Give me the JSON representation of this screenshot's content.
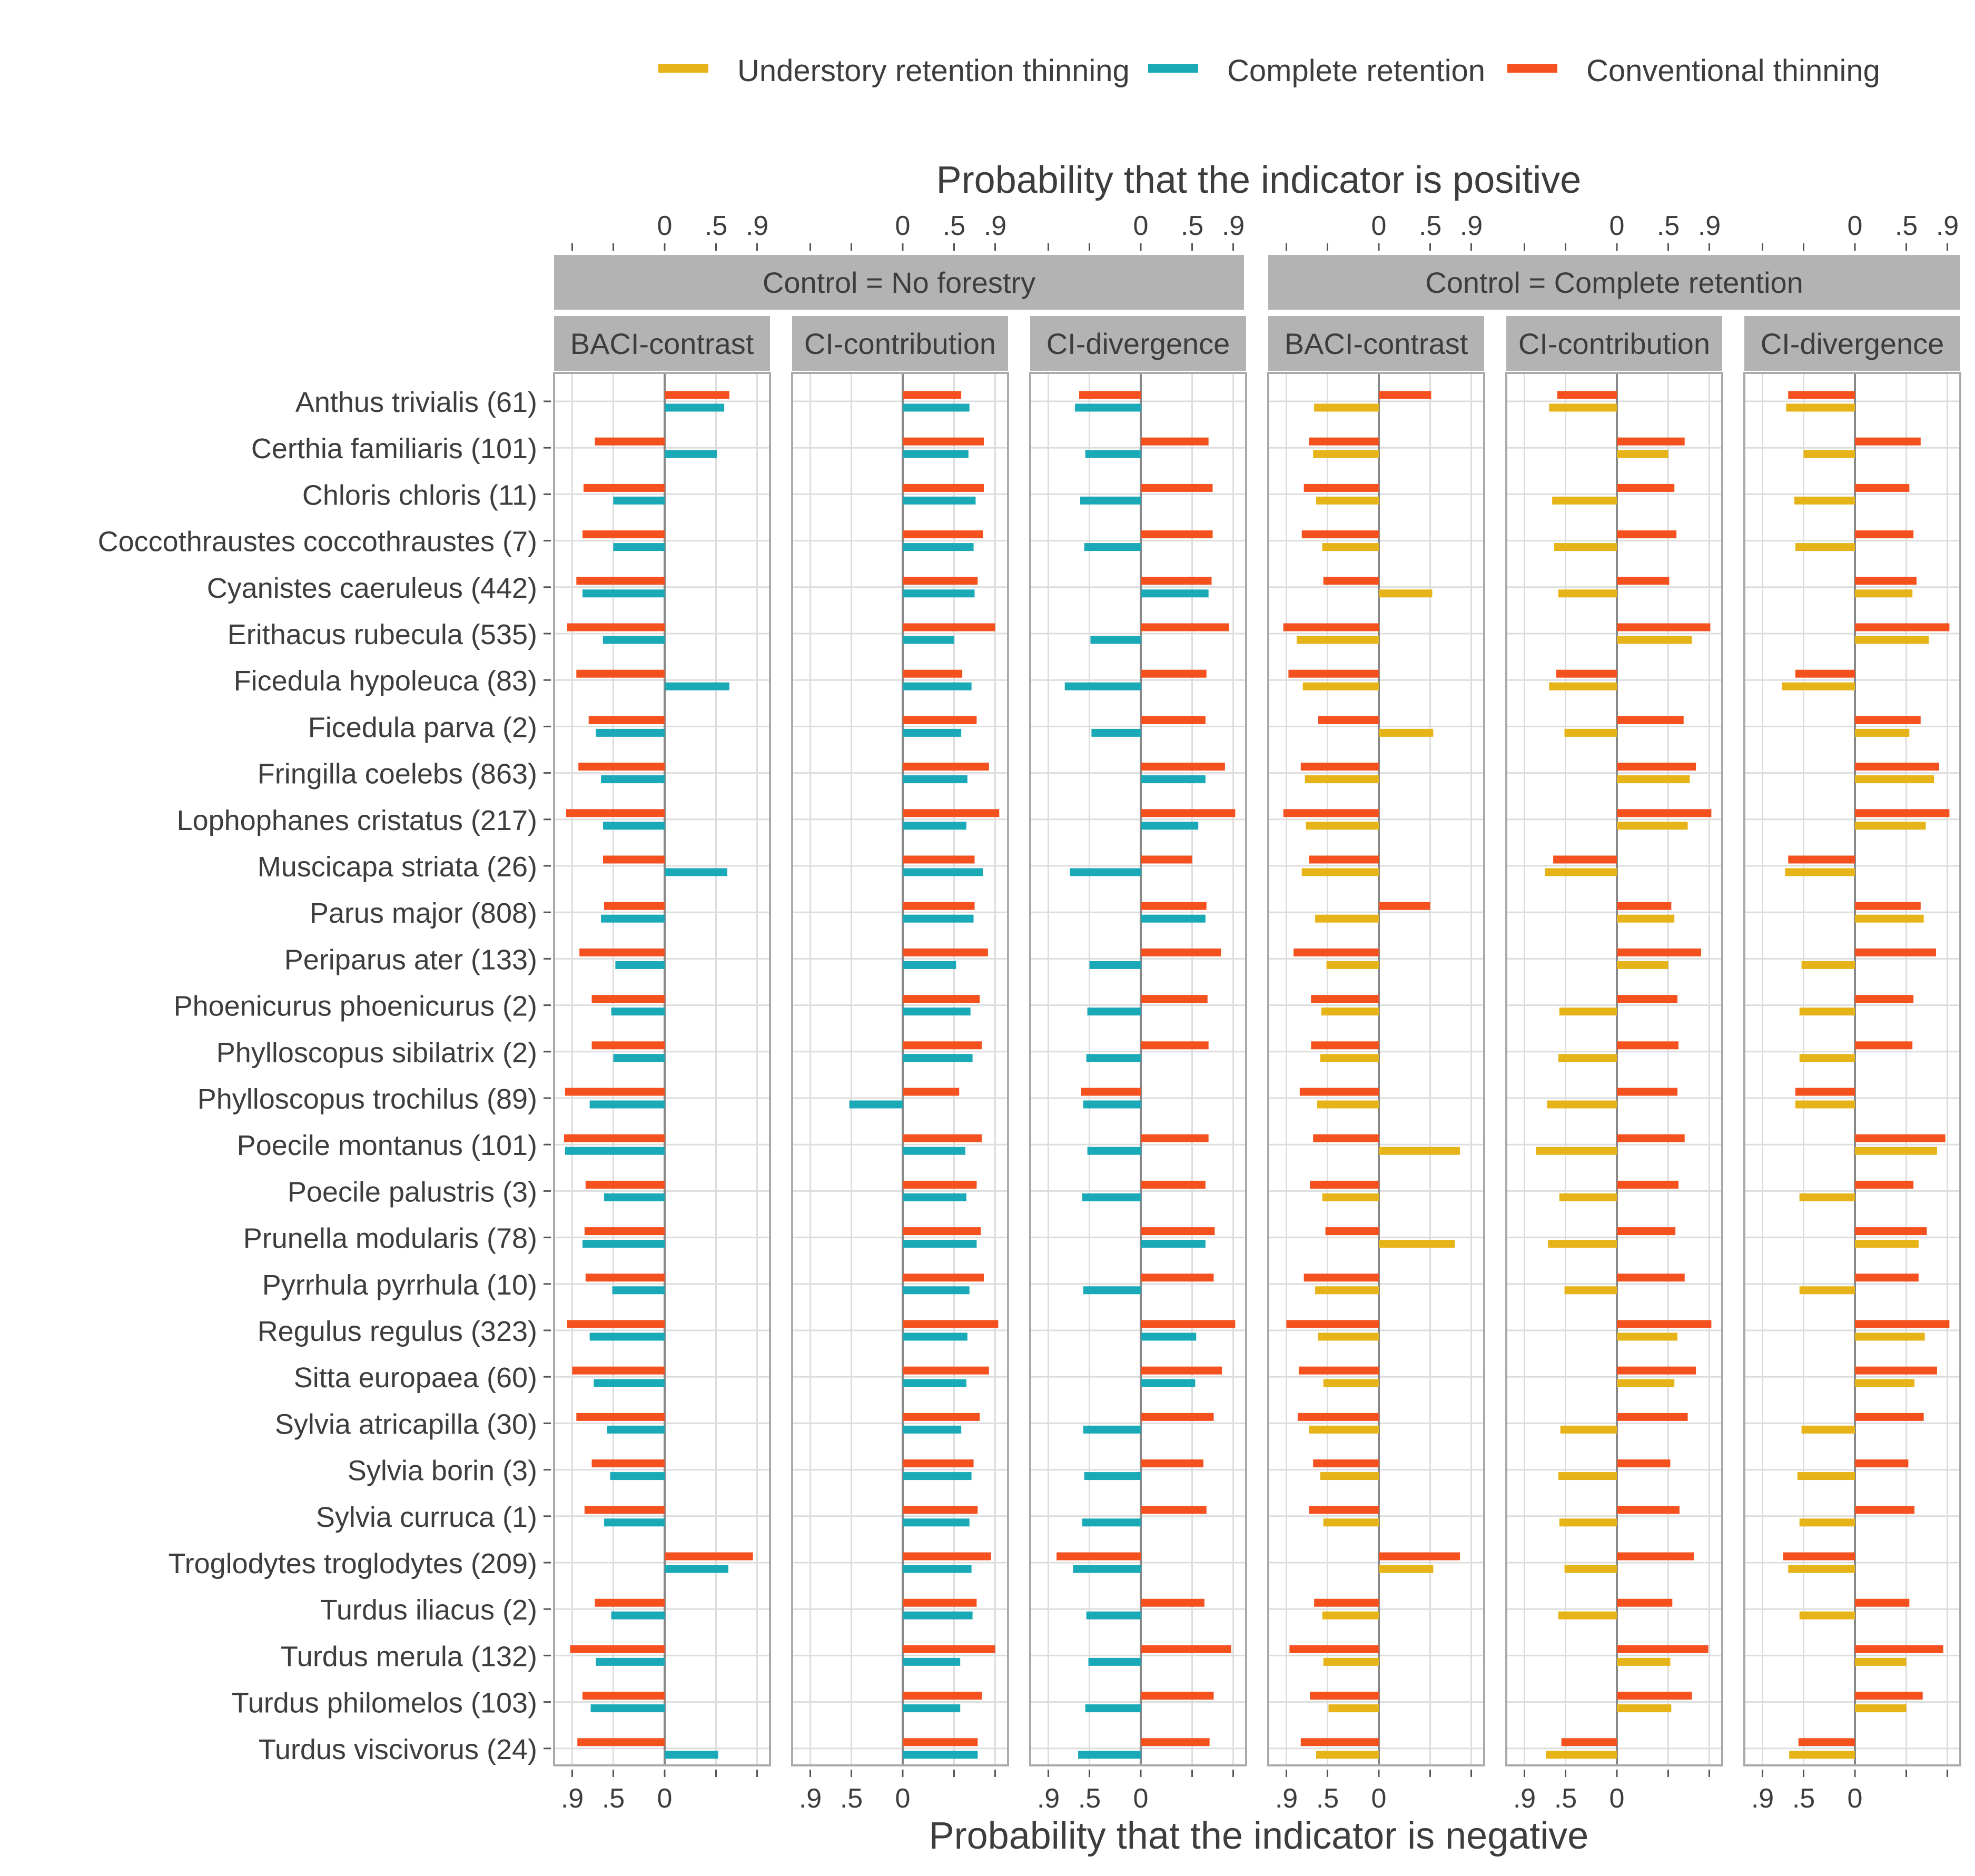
{
  "colors": {
    "understory": "#E6B418",
    "complete": "#1AA9B7",
    "conventional": "#F4511E",
    "strip_bg": "#B3B3B3",
    "strip_text": "#FFFFFF",
    "grid": "#DDDDDD",
    "panel_border": "#AAAAAA",
    "zero_line": "#888888"
  },
  "chart_data": {
    "type": "bar",
    "orientation": "horizontal-diverging",
    "top_axis_title": "Probability that the indicator is positive",
    "bottom_axis_title": "Probability that the indicator is negative",
    "top_tick_labels": [
      "0",
      ".5",
      ".9"
    ],
    "bottom_tick_labels": [
      ".9",
      ".5",
      "0"
    ],
    "legend": {
      "placement": "top-right",
      "items": [
        {
          "key": "understory",
          "label": "Understory retention thinning"
        },
        {
          "key": "complete",
          "label": "Complete retention"
        },
        {
          "key": "conventional",
          "label": "Conventional thinning"
        }
      ]
    },
    "groups": [
      {
        "label": "Control = No forestry",
        "panels": [
          0,
          1,
          2
        ]
      },
      {
        "label": "Control = Complete retention",
        "panels": [
          3,
          4,
          5
        ]
      }
    ],
    "panel_labels": [
      "BACI-contrast",
      "CI-contribution",
      "CI-divergence",
      "BACI-contrast",
      "CI-contribution",
      "CI-divergence"
    ],
    "species": [
      "Anthus trivialis (61)",
      "Certhia familiaris (101)",
      "Chloris chloris (11)",
      "Coccothraustes coccothraustes (7)",
      "Cyanistes caeruleus (442)",
      "Erithacus rubecula (535)",
      "Ficedula hypoleuca (83)",
      "Ficedula parva (2)",
      "Fringilla coelebs (863)",
      "Lophophanes cristatus (217)",
      "Muscicapa striata (26)",
      "Parus major (808)",
      "Periparus ater (133)",
      "Phoenicurus phoenicurus (2)",
      "Phylloscopus sibilatrix (2)",
      "Phylloscopus trochilus (89)",
      "Poecile montanus (101)",
      "Poecile palustris (3)",
      "Prunella modularis (78)",
      "Pyrrhula pyrrhula (10)",
      "Regulus regulus (323)",
      "Sitta europaea (60)",
      "Sylvia atricapilla (30)",
      "Sylvia borin (3)",
      "Sylvia curruca (1)",
      "Troglodytes troglodytes (209)",
      "Turdus iliacus (2)",
      "Turdus merula (132)",
      "Turdus philomelos (103)",
      "Turdus viscivorus (24)"
    ],
    "value_note": "signed probability; positive = probability indicator is positive, negative = probability indicator is negative",
    "panels": [
      {
        "conventional": [
          0.63,
          -0.68,
          -0.79,
          -0.8,
          -0.86,
          -0.95,
          -0.86,
          -0.74,
          -0.84,
          -0.96,
          -0.6,
          -0.59,
          -0.83,
          -0.71,
          -0.71,
          -0.97,
          -0.98,
          -0.77,
          -0.78,
          -0.77,
          -0.95,
          -0.9,
          -0.86,
          -0.71,
          -0.78,
          0.86,
          -0.68,
          -0.92,
          -0.8,
          -0.85
        ],
        "complete": [
          0.58,
          0.51,
          -0.5,
          -0.5,
          -0.8,
          -0.6,
          0.63,
          -0.67,
          -0.62,
          -0.6,
          0.61,
          -0.62,
          -0.48,
          -0.52,
          -0.5,
          -0.73,
          -0.97,
          -0.59,
          -0.8,
          -0.51,
          -0.73,
          -0.69,
          -0.56,
          -0.53,
          -0.59,
          0.62,
          -0.52,
          -0.67,
          -0.72,
          0.52
        ]
      },
      {
        "conventional": [
          0.57,
          0.79,
          0.79,
          0.78,
          0.73,
          0.9,
          0.58,
          0.72,
          0.84,
          0.94,
          0.7,
          0.7,
          0.83,
          0.75,
          0.77,
          0.55,
          0.77,
          0.72,
          0.76,
          0.79,
          0.93,
          0.84,
          0.75,
          0.69,
          0.73,
          0.86,
          0.72,
          0.9,
          0.77,
          0.73
        ],
        "complete": [
          0.65,
          0.64,
          0.71,
          0.69,
          0.7,
          0.5,
          0.67,
          0.57,
          0.63,
          0.62,
          0.78,
          0.69,
          0.52,
          0.66,
          0.68,
          -0.52,
          0.61,
          0.62,
          0.72,
          0.65,
          0.63,
          0.62,
          0.57,
          0.67,
          0.65,
          0.67,
          0.68,
          0.56,
          0.56,
          0.73
        ]
      },
      {
        "conventional": [
          -0.6,
          0.66,
          0.7,
          0.7,
          0.69,
          0.86,
          0.64,
          0.63,
          0.82,
          0.92,
          0.5,
          0.64,
          0.78,
          0.65,
          0.66,
          -0.58,
          0.66,
          0.63,
          0.72,
          0.71,
          0.92,
          0.79,
          0.71,
          0.61,
          0.64,
          -0.82,
          0.62,
          0.88,
          0.71,
          0.67
        ],
        "complete": [
          -0.64,
          -0.54,
          -0.59,
          -0.55,
          0.66,
          -0.49,
          -0.74,
          -0.48,
          0.63,
          0.56,
          -0.69,
          0.63,
          -0.5,
          -0.52,
          -0.53,
          -0.56,
          -0.52,
          -0.57,
          0.63,
          -0.56,
          0.54,
          0.53,
          -0.56,
          -0.55,
          -0.57,
          -0.66,
          -0.53,
          -0.51,
          -0.54,
          -0.61
        ]
      },
      {
        "conventional": [
          0.51,
          -0.68,
          -0.73,
          -0.75,
          -0.54,
          -0.93,
          -0.88,
          -0.59,
          -0.76,
          -0.93,
          -0.68,
          0.5,
          -0.83,
          -0.66,
          -0.66,
          -0.77,
          -0.64,
          -0.67,
          -0.52,
          -0.73,
          -0.9,
          -0.78,
          -0.79,
          -0.64,
          -0.68,
          0.79,
          -0.63,
          -0.87,
          -0.67,
          -0.76
        ],
        "understory": [
          -0.63,
          -0.64,
          -0.61,
          -0.55,
          0.52,
          -0.8,
          -0.74,
          0.53,
          -0.72,
          -0.71,
          -0.75,
          -0.62,
          -0.51,
          -0.56,
          -0.57,
          -0.6,
          0.79,
          -0.55,
          0.74,
          -0.62,
          -0.59,
          -0.54,
          -0.68,
          -0.57,
          -0.54,
          0.53,
          -0.55,
          -0.54,
          -0.49,
          -0.61
        ]
      },
      {
        "conventional": [
          -0.58,
          0.66,
          0.56,
          0.58,
          0.51,
          0.91,
          -0.59,
          0.65,
          0.77,
          0.92,
          -0.62,
          0.53,
          0.82,
          0.59,
          0.6,
          0.59,
          0.66,
          0.6,
          0.57,
          0.66,
          0.92,
          0.77,
          0.69,
          0.52,
          0.61,
          0.75,
          0.54,
          0.89,
          0.73,
          -0.54
        ],
        "understory": [
          -0.66,
          0.5,
          -0.63,
          -0.61,
          -0.57,
          0.73,
          -0.66,
          -0.51,
          0.71,
          0.69,
          -0.7,
          0.56,
          0.5,
          -0.56,
          -0.57,
          -0.68,
          -0.79,
          -0.56,
          -0.67,
          -0.51,
          0.59,
          0.56,
          -0.55,
          -0.57,
          -0.56,
          -0.51,
          -0.57,
          0.52,
          0.53,
          -0.69
        ]
      },
      {
        "conventional": [
          -0.65,
          0.64,
          0.53,
          0.57,
          0.6,
          0.92,
          -0.58,
          0.64,
          0.82,
          0.92,
          -0.65,
          0.64,
          0.79,
          0.57,
          0.56,
          -0.58,
          0.88,
          0.57,
          0.7,
          0.62,
          0.92,
          0.8,
          0.67,
          0.52,
          0.58,
          -0.7,
          0.53,
          0.86,
          0.66,
          -0.55
        ],
        "understory": [
          -0.67,
          -0.5,
          -0.59,
          -0.58,
          0.56,
          0.72,
          -0.71,
          0.53,
          0.77,
          0.69,
          -0.68,
          0.67,
          -0.52,
          -0.54,
          -0.54,
          -0.58,
          0.8,
          -0.54,
          0.62,
          -0.54,
          0.68,
          0.58,
          -0.52,
          -0.56,
          -0.54,
          -0.65,
          -0.54,
          0.5,
          0.5,
          -0.64
        ]
      }
    ]
  }
}
